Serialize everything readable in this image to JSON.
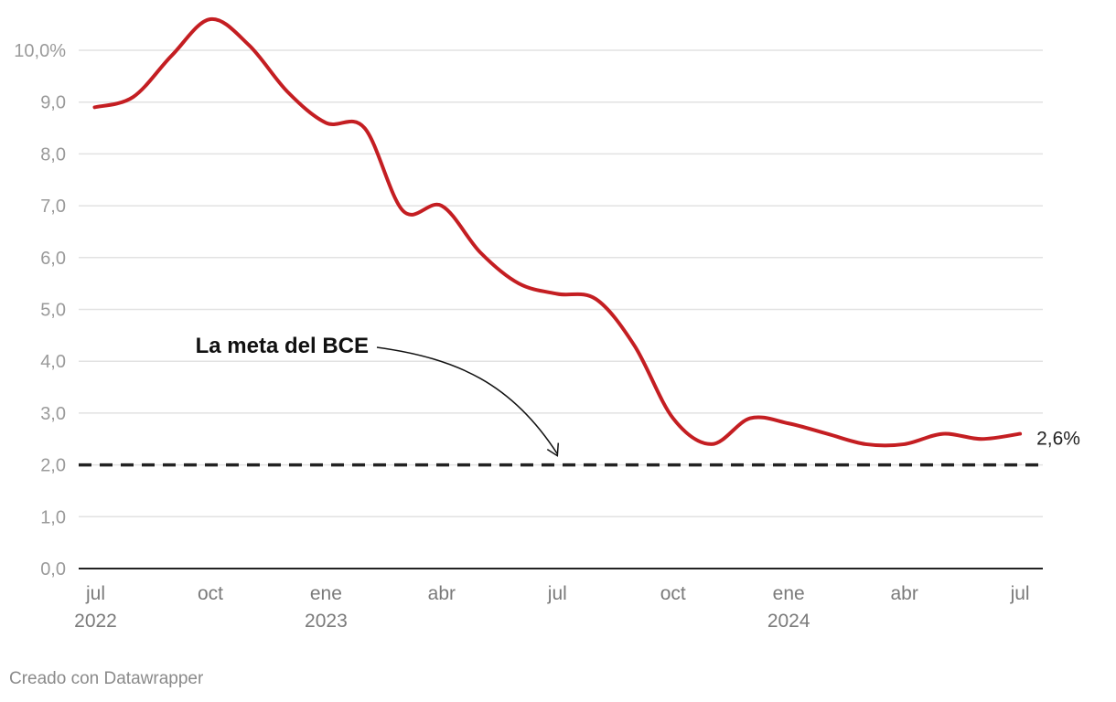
{
  "chart_data": {
    "type": "line",
    "ylim": [
      0,
      10
    ],
    "y_ticks": [
      "10,0%",
      "9,0",
      "8,0",
      "7,0",
      "6,0",
      "5,0",
      "4,0",
      "3,0",
      "2,0",
      "1,0",
      "0,0"
    ],
    "x_ticks": [
      {
        "label": "jul",
        "year": "2022"
      },
      {
        "label": "oct",
        "year": ""
      },
      {
        "label": "ene",
        "year": "2023"
      },
      {
        "label": "abr",
        "year": ""
      },
      {
        "label": "jul",
        "year": ""
      },
      {
        "label": "oct",
        "year": ""
      },
      {
        "label": "ene",
        "year": "2024"
      },
      {
        "label": "abr",
        "year": ""
      },
      {
        "label": "jul",
        "year": ""
      }
    ],
    "series": [
      {
        "color": "#c41e22",
        "x": [
          "2022-07",
          "2022-08",
          "2022-09",
          "2022-10",
          "2022-11",
          "2022-12",
          "2023-01",
          "2023-02",
          "2023-03",
          "2023-04",
          "2023-05",
          "2023-06",
          "2023-07",
          "2023-08",
          "2023-09",
          "2023-10",
          "2023-11",
          "2023-12",
          "2024-01",
          "2024-02",
          "2024-03",
          "2024-04",
          "2024-05",
          "2024-06",
          "2024-07"
        ],
        "values": [
          8.9,
          9.1,
          9.9,
          10.6,
          10.1,
          9.2,
          8.6,
          8.5,
          6.9,
          7.0,
          6.1,
          5.5,
          5.3,
          5.2,
          4.3,
          2.9,
          2.4,
          2.9,
          2.8,
          2.6,
          2.4,
          2.4,
          2.6,
          2.5,
          2.6
        ]
      }
    ],
    "reference_line": {
      "value": 2.0,
      "style": "dashed",
      "color": "#222222"
    },
    "annotation": {
      "text": "La meta del BCE"
    },
    "end_label": "2,6%",
    "grid": true
  },
  "footer": {
    "credit": "Creado con Datawrapper"
  }
}
